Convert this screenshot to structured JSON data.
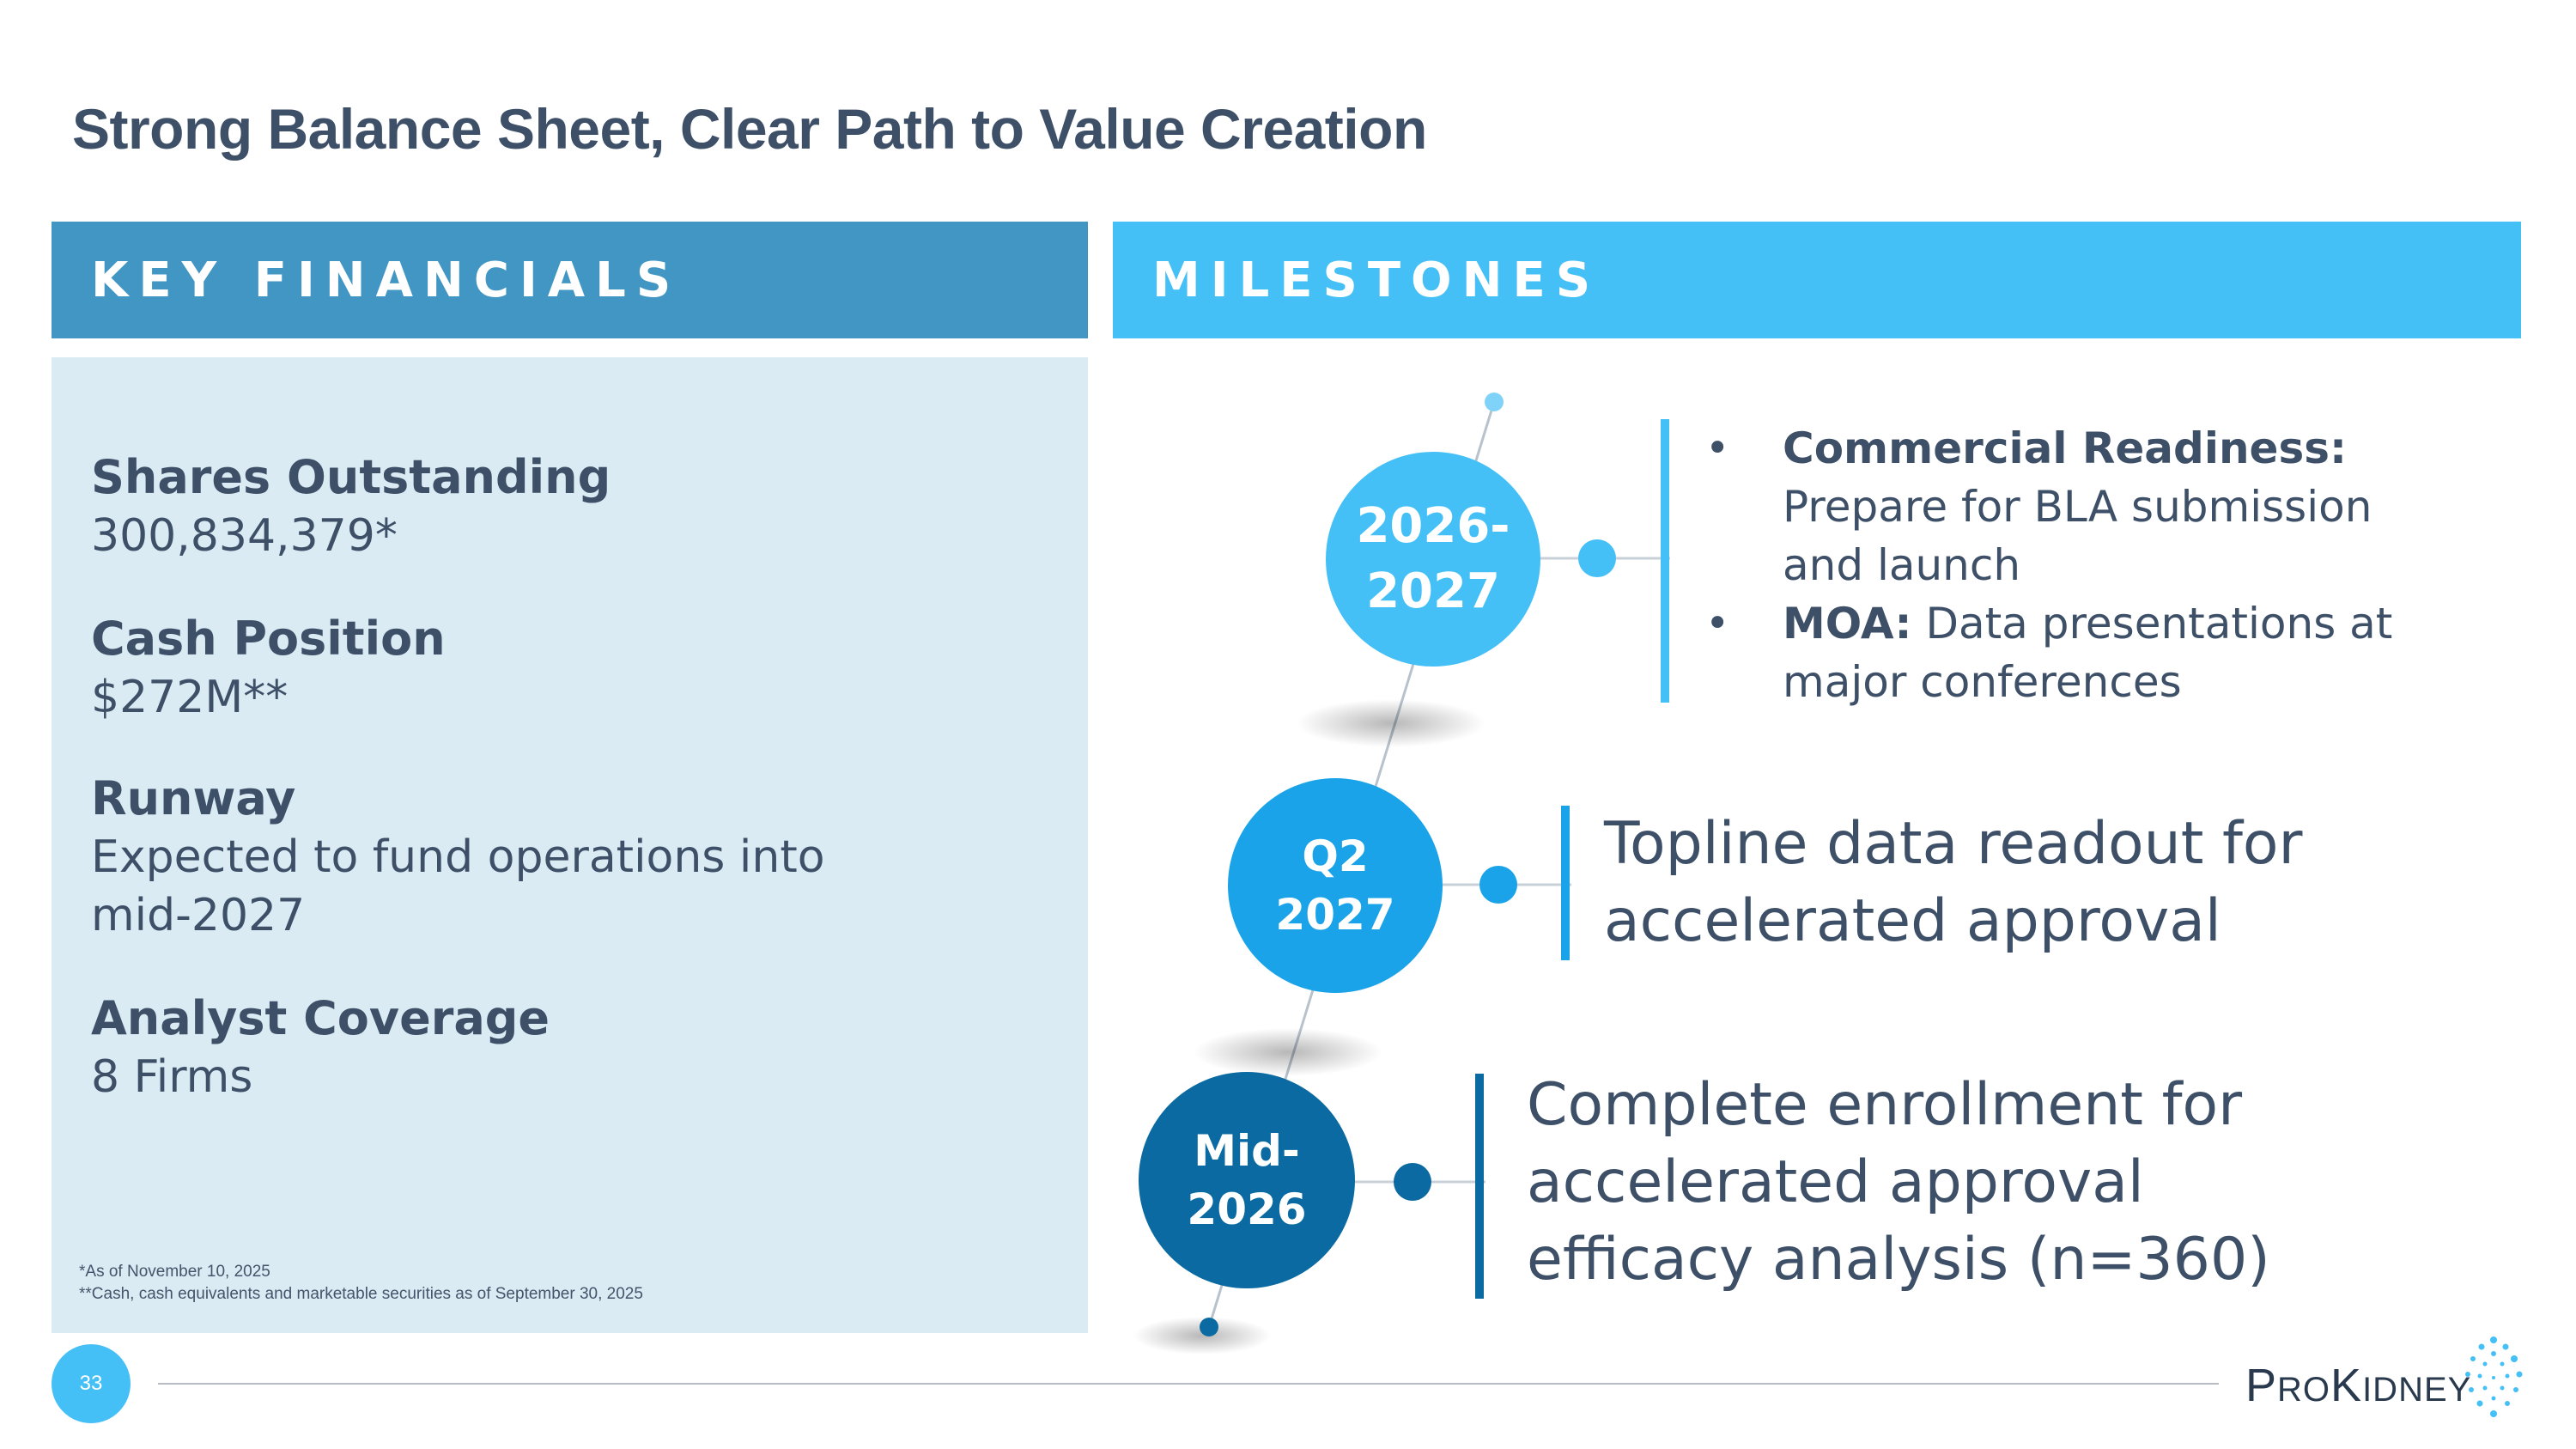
{
  "title": "Strong Balance Sheet, Clear Path to Value Creation",
  "headers": {
    "financials": "KEY FINANCIALS",
    "milestones": "MILESTONES"
  },
  "financials": [
    {
      "label": "Shares Outstanding",
      "value": "300,834,379*"
    },
    {
      "label": "Cash Position",
      "value": "$272M**"
    },
    {
      "label": "Runway",
      "value_line1": "Expected to fund operations into",
      "value_line2": "mid-2027"
    },
    {
      "label": "Analyst Coverage",
      "value": "8 Firms"
    }
  ],
  "footnotes": [
    "*As of November 10, 2025",
    "**Cash, cash equivalents and marketable securities as of September 30, 2025"
  ],
  "milestones": [
    {
      "date_line1": "2026-",
      "date_line2": "2027",
      "items": [
        {
          "bold": "Commercial Readiness:",
          "line1": "Prepare for BLA submission",
          "line2": "and launch"
        },
        {
          "bold": "MOA:",
          "line1": " Data presentations at",
          "line2": "major conferences"
        }
      ]
    },
    {
      "date_line1": "Q2",
      "date_line2": "2027",
      "text_line1": "Topline data readout for",
      "text_line2": "accelerated approval"
    },
    {
      "date_line1": "Mid-",
      "date_line2": "2026",
      "text_line1": "Complete enrollment for",
      "text_line2": "accelerated approval",
      "text_line3": "efficacy analysis (n=360)"
    }
  ],
  "colors": {
    "light_blue": "#45c0f6",
    "mid_blue": "#1aa3e8",
    "dark_blue": "#0a6aa1",
    "panel_bg": "#daebf3"
  },
  "footer": {
    "page_number": "33",
    "logo_p": "P",
    "logo_ro": "RO",
    "logo_k": "K",
    "logo_idney": "IDNEY"
  }
}
